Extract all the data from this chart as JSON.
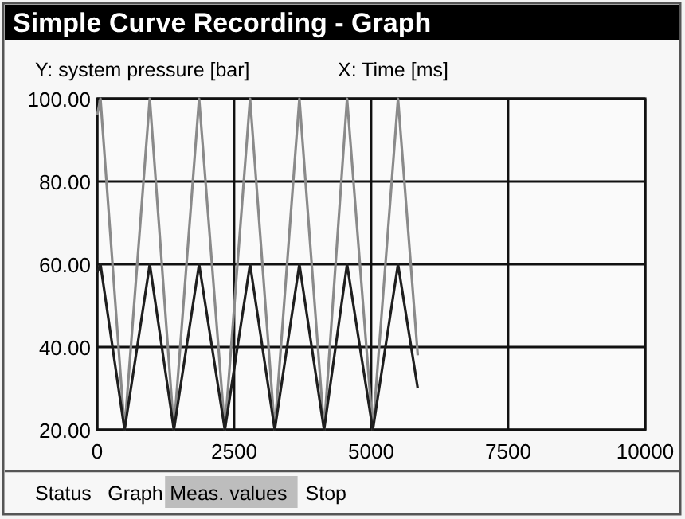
{
  "chart_data": {
    "type": "line",
    "title": "Simple Curve Recording - Graph",
    "ylabel": "Y: system pressure [bar]",
    "xlabel": "X: Time [ms]",
    "x": [
      0,
      60,
      500,
      960,
      1400,
      1860,
      2330,
      2790,
      3240,
      3690,
      4140,
      4560,
      5030,
      5490,
      5850
    ],
    "series": [
      {
        "color": "#8a8a8a",
        "values": [
          96,
          100,
          20,
          100,
          20,
          100,
          20,
          100,
          20,
          100,
          20,
          100,
          20,
          100,
          38
        ]
      },
      {
        "color": "#1e1e1e",
        "values": [
          58,
          60,
          20,
          60,
          20,
          60,
          20,
          60,
          20,
          60,
          20,
          60,
          20,
          60,
          30
        ]
      }
    ],
    "xlim": [
      0,
      10000
    ],
    "xticks": [
      0,
      2500,
      5000,
      7500,
      10000
    ],
    "ylim": [
      20,
      100
    ],
    "yticks": [
      {
        "value": 20,
        "label": "20.00"
      },
      {
        "value": 40,
        "label": "40.00"
      },
      {
        "value": 60,
        "label": "60.00"
      },
      {
        "value": 80,
        "label": "80.00"
      },
      {
        "value": 100,
        "label": "100.00"
      }
    ],
    "grid": true,
    "marker": "none",
    "line_style": "solid",
    "annotations": [
      "Status",
      "Graph",
      "Meas. values",
      "Stop"
    ]
  }
}
